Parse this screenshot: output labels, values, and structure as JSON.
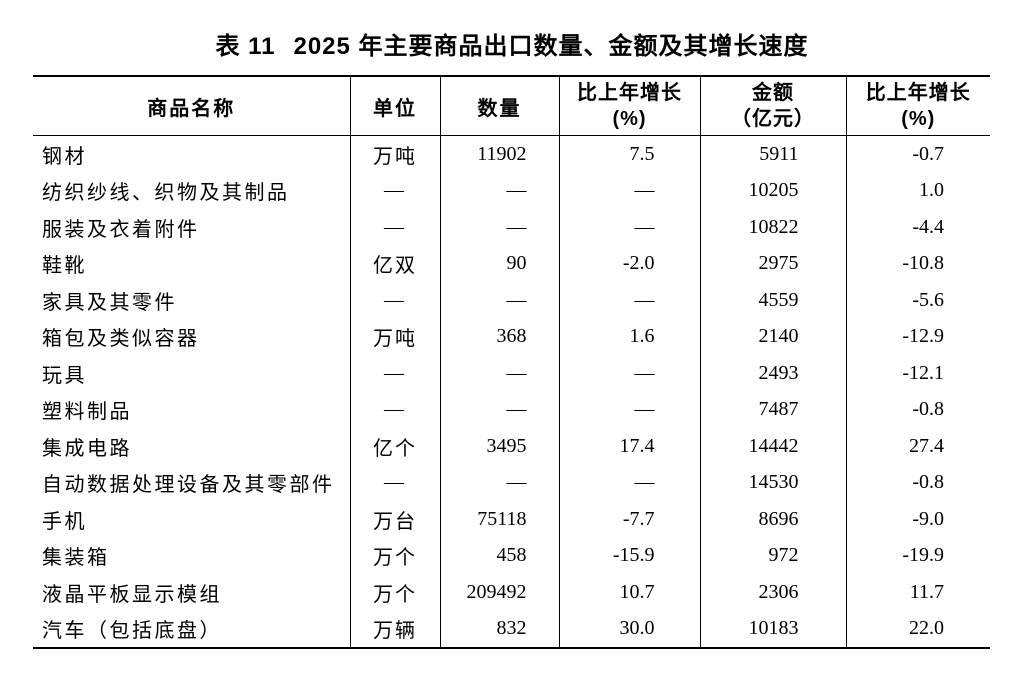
{
  "page": {
    "background": "#ffffff",
    "text_color": "#000000",
    "rule_color": "#000000"
  },
  "title": {
    "label": "表 11",
    "text": "2025 年主要商品出口数量、金额及其增长速度"
  },
  "table": {
    "columns": [
      {
        "label": "商品名称",
        "sub": ""
      },
      {
        "label": "单位",
        "sub": ""
      },
      {
        "label": "数量",
        "sub": ""
      },
      {
        "label": "比上年增长",
        "sub": "(%)"
      },
      {
        "label": "金额",
        "sub": "（亿元）"
      },
      {
        "label": "比上年增长",
        "sub": "(%)"
      }
    ],
    "missing_value_dash": "—",
    "rows": [
      {
        "name": "钢材",
        "unit": "万吨",
        "qty": "11902",
        "qty_growth": "7.5",
        "amount": "5911",
        "amount_growth": "-0.7"
      },
      {
        "name": "纺织纱线、织物及其制品",
        "unit": "—",
        "qty": "—",
        "qty_growth": "—",
        "amount": "10205",
        "amount_growth": "1.0"
      },
      {
        "name": "服装及衣着附件",
        "unit": "—",
        "qty": "—",
        "qty_growth": "—",
        "amount": "10822",
        "amount_growth": "-4.4"
      },
      {
        "name": "鞋靴",
        "unit": "亿双",
        "qty": "90",
        "qty_growth": "-2.0",
        "amount": "2975",
        "amount_growth": "-10.8"
      },
      {
        "name": "家具及其零件",
        "unit": "—",
        "qty": "—",
        "qty_growth": "—",
        "amount": "4559",
        "amount_growth": "-5.6"
      },
      {
        "name": "箱包及类似容器",
        "unit": "万吨",
        "qty": "368",
        "qty_growth": "1.6",
        "amount": "2140",
        "amount_growth": "-12.9"
      },
      {
        "name": "玩具",
        "unit": "—",
        "qty": "—",
        "qty_growth": "—",
        "amount": "2493",
        "amount_growth": "-12.1"
      },
      {
        "name": "塑料制品",
        "unit": "—",
        "qty": "—",
        "qty_growth": "—",
        "amount": "7487",
        "amount_growth": "-0.8"
      },
      {
        "name": "集成电路",
        "unit": "亿个",
        "qty": "3495",
        "qty_growth": "17.4",
        "amount": "14442",
        "amount_growth": "27.4"
      },
      {
        "name": "自动数据处理设备及其零部件",
        "unit": "—",
        "qty": "—",
        "qty_growth": "—",
        "amount": "14530",
        "amount_growth": "-0.8"
      },
      {
        "name": "手机",
        "unit": "万台",
        "qty": "75118",
        "qty_growth": "-7.7",
        "amount": "8696",
        "amount_growth": "-9.0"
      },
      {
        "name": "集装箱",
        "unit": "万个",
        "qty": "458",
        "qty_growth": "-15.9",
        "amount": "972",
        "amount_growth": "-19.9"
      },
      {
        "name": "液晶平板显示模组",
        "unit": "万个",
        "qty": "209492",
        "qty_growth": "10.7",
        "amount": "2306",
        "amount_growth": "11.7"
      },
      {
        "name": "汽车（包括底盘）",
        "unit": "万辆",
        "qty": "832",
        "qty_growth": "30.0",
        "amount": "10183",
        "amount_growth": "22.0"
      }
    ]
  }
}
